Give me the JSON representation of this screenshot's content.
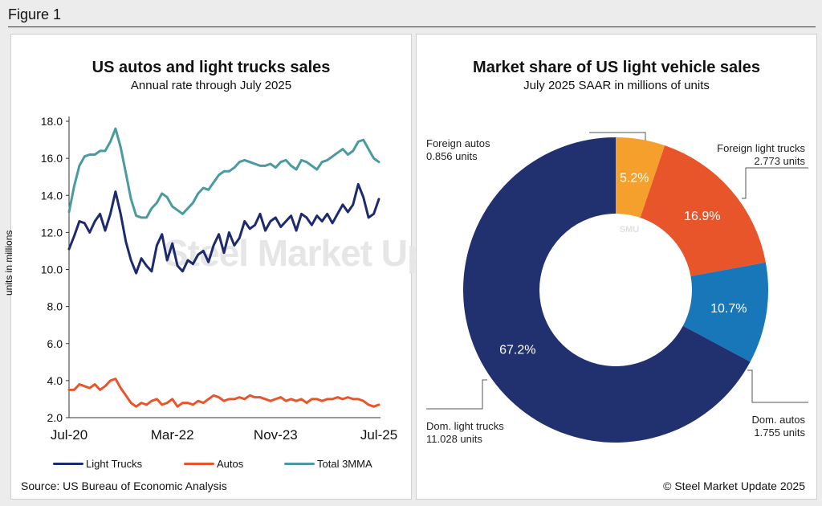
{
  "figure_label": "Figure 1",
  "watermark": "Steel Market Update",
  "watermark_badge": "SMU",
  "colors": {
    "light_trucks": "#1e2a6e",
    "autos": "#e8552a",
    "total_3mma": "#4b9aa0",
    "foreign_autos": "#f5a02c",
    "foreign_light_trucks": "#e8552a",
    "dom_autos": "#1777b8",
    "dom_light_trucks": "#21306e"
  },
  "left_panel": {
    "source": "Source: US Bureau of Economic Analysis"
  },
  "right_panel": {
    "copyright": "© Steel Market Update 2025"
  },
  "chart_data": [
    {
      "type": "line",
      "title": "US autos and light trucks sales",
      "subtitle": "Annual rate through July 2025",
      "xlabel": "",
      "ylabel": "units in millions",
      "ylim": [
        2.0,
        18.0
      ],
      "yticks": [
        "2.0",
        "4.0",
        "6.0",
        "8.0",
        "10.0",
        "12.0",
        "14.0",
        "16.0",
        "18.0"
      ],
      "xtick_labels": [
        {
          "label": "Jul-20",
          "index": 0
        },
        {
          "label": "Mar-22",
          "index": 20
        },
        {
          "label": "Nov-23",
          "index": 40
        },
        {
          "label": "Jul-25",
          "index": 60
        }
      ],
      "x": [
        "Jul-20",
        "Aug-20",
        "Sep-20",
        "Oct-20",
        "Nov-20",
        "Dec-20",
        "Jan-21",
        "Feb-21",
        "Mar-21",
        "Apr-21",
        "May-21",
        "Jun-21",
        "Jul-21",
        "Aug-21",
        "Sep-21",
        "Oct-21",
        "Nov-21",
        "Dec-21",
        "Jan-22",
        "Feb-22",
        "Mar-22",
        "Apr-22",
        "May-22",
        "Jun-22",
        "Jul-22",
        "Aug-22",
        "Sep-22",
        "Oct-22",
        "Nov-22",
        "Dec-22",
        "Jan-23",
        "Feb-23",
        "Mar-23",
        "Apr-23",
        "May-23",
        "Jun-23",
        "Jul-23",
        "Aug-23",
        "Sep-23",
        "Oct-23",
        "Nov-23",
        "Dec-23",
        "Jan-24",
        "Feb-24",
        "Mar-24",
        "Apr-24",
        "May-24",
        "Jun-24",
        "Jul-24",
        "Aug-24",
        "Sep-24",
        "Oct-24",
        "Nov-24",
        "Dec-24",
        "Jan-25",
        "Feb-25",
        "Mar-25",
        "Apr-25",
        "May-25",
        "Jun-25",
        "Jul-25"
      ],
      "series": [
        {
          "name": "Light Trucks",
          "color_key": "light_trucks",
          "values": [
            11.1,
            11.8,
            12.6,
            12.5,
            12.0,
            12.6,
            13.0,
            12.1,
            13.0,
            14.2,
            13.0,
            11.5,
            10.5,
            9.8,
            10.6,
            10.2,
            9.9,
            11.3,
            11.9,
            10.5,
            11.4,
            10.2,
            9.9,
            10.5,
            10.3,
            10.8,
            11.0,
            10.4,
            11.3,
            11.9,
            10.9,
            12.0,
            11.3,
            11.7,
            12.6,
            12.2,
            12.4,
            13.0,
            12.1,
            12.6,
            12.8,
            12.3,
            12.6,
            12.9,
            12.1,
            13.0,
            12.8,
            12.4,
            12.9,
            12.6,
            13.0,
            12.5,
            13.0,
            13.5,
            13.1,
            13.5,
            14.6,
            13.9,
            12.8,
            13.0,
            13.8
          ]
        },
        {
          "name": "Autos",
          "color_key": "autos",
          "values": [
            3.5,
            3.5,
            3.8,
            3.7,
            3.6,
            3.8,
            3.5,
            3.7,
            4.0,
            4.1,
            3.6,
            3.2,
            2.8,
            2.6,
            2.8,
            2.7,
            2.9,
            3.0,
            2.7,
            2.8,
            3.0,
            2.6,
            2.8,
            2.8,
            2.7,
            2.9,
            2.8,
            3.0,
            3.2,
            3.1,
            2.9,
            3.0,
            3.0,
            3.1,
            3.0,
            3.2,
            3.1,
            3.1,
            3.0,
            2.9,
            3.0,
            3.1,
            2.9,
            3.0,
            2.9,
            3.0,
            2.8,
            3.0,
            3.0,
            2.9,
            3.0,
            3.0,
            3.1,
            3.0,
            3.1,
            3.0,
            3.0,
            2.9,
            2.7,
            2.6,
            2.7
          ]
        },
        {
          "name": "Total 3MMA",
          "color_key": "total_3mma",
          "values": [
            13.1,
            14.5,
            15.6,
            16.1,
            16.2,
            16.2,
            16.4,
            16.4,
            16.9,
            17.6,
            16.6,
            15.2,
            13.8,
            12.9,
            12.8,
            12.8,
            13.3,
            13.6,
            14.1,
            13.9,
            13.4,
            13.2,
            13.0,
            13.3,
            13.6,
            14.1,
            14.4,
            14.3,
            14.7,
            15.1,
            15.3,
            15.3,
            15.5,
            15.8,
            15.9,
            15.8,
            15.7,
            15.6,
            15.6,
            15.7,
            15.5,
            15.8,
            15.9,
            15.6,
            15.4,
            15.9,
            15.8,
            15.6,
            15.4,
            15.8,
            15.9,
            16.1,
            16.3,
            16.5,
            16.2,
            16.4,
            16.9,
            17.0,
            16.5,
            16.0,
            15.8
          ]
        }
      ]
    },
    {
      "type": "pie",
      "title": "Market share of US light vehicle sales",
      "subtitle": "July 2025 SAAR in millions of units",
      "slices": [
        {
          "name": "Foreign autos",
          "value": 0.856,
          "percent_label": "5.2%",
          "callout": "0.856 units",
          "color_key": "foreign_autos"
        },
        {
          "name": "Foreign light trucks",
          "value": 2.773,
          "percent_label": "16.9%",
          "callout": "2.773 units",
          "color_key": "foreign_light_trucks"
        },
        {
          "name": "Dom. autos",
          "value": 1.755,
          "percent_label": "10.7%",
          "callout": "1.755 units",
          "color_key": "dom_autos"
        },
        {
          "name": "Dom. light trucks",
          "value": 11.028,
          "percent_label": "67.2%",
          "callout": "11.028 units",
          "color_key": "dom_light_trucks"
        }
      ]
    }
  ]
}
